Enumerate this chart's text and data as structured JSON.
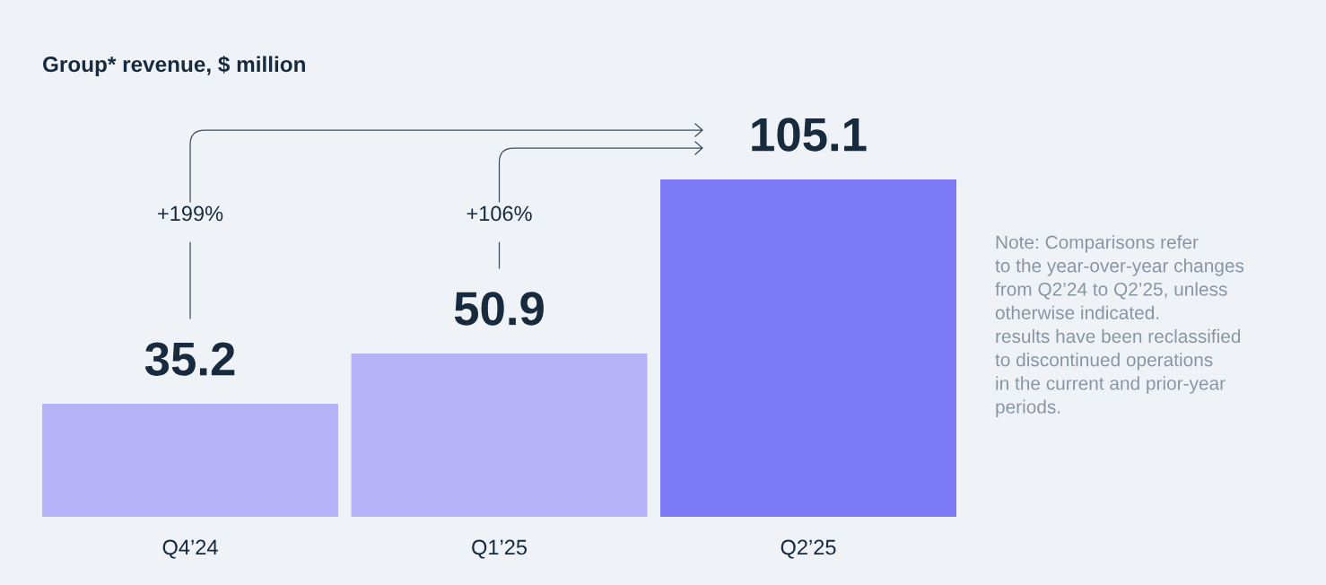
{
  "chart_data": {
    "type": "bar",
    "title": "Group* revenue, $ million",
    "categories": [
      "Q4’24",
      "Q1’25",
      "Q2’25"
    ],
    "values": [
      35.2,
      50.9,
      105.1
    ],
    "colors": [
      "#b6b3f8",
      "#b6b3f8",
      "#7d7af7"
    ],
    "data_labels": true,
    "tick_labels": "x",
    "annotations": [
      "+199%",
      "+106%",
      "Note: Comparisons refer\nto the year-over-year changes\nfrom Q2’24 to Q2’25, unless\notherwise indicated.\nresults have been reclassified\nto discontinued operations\nin the current and prior-year\nperiods."
    ]
  }
}
